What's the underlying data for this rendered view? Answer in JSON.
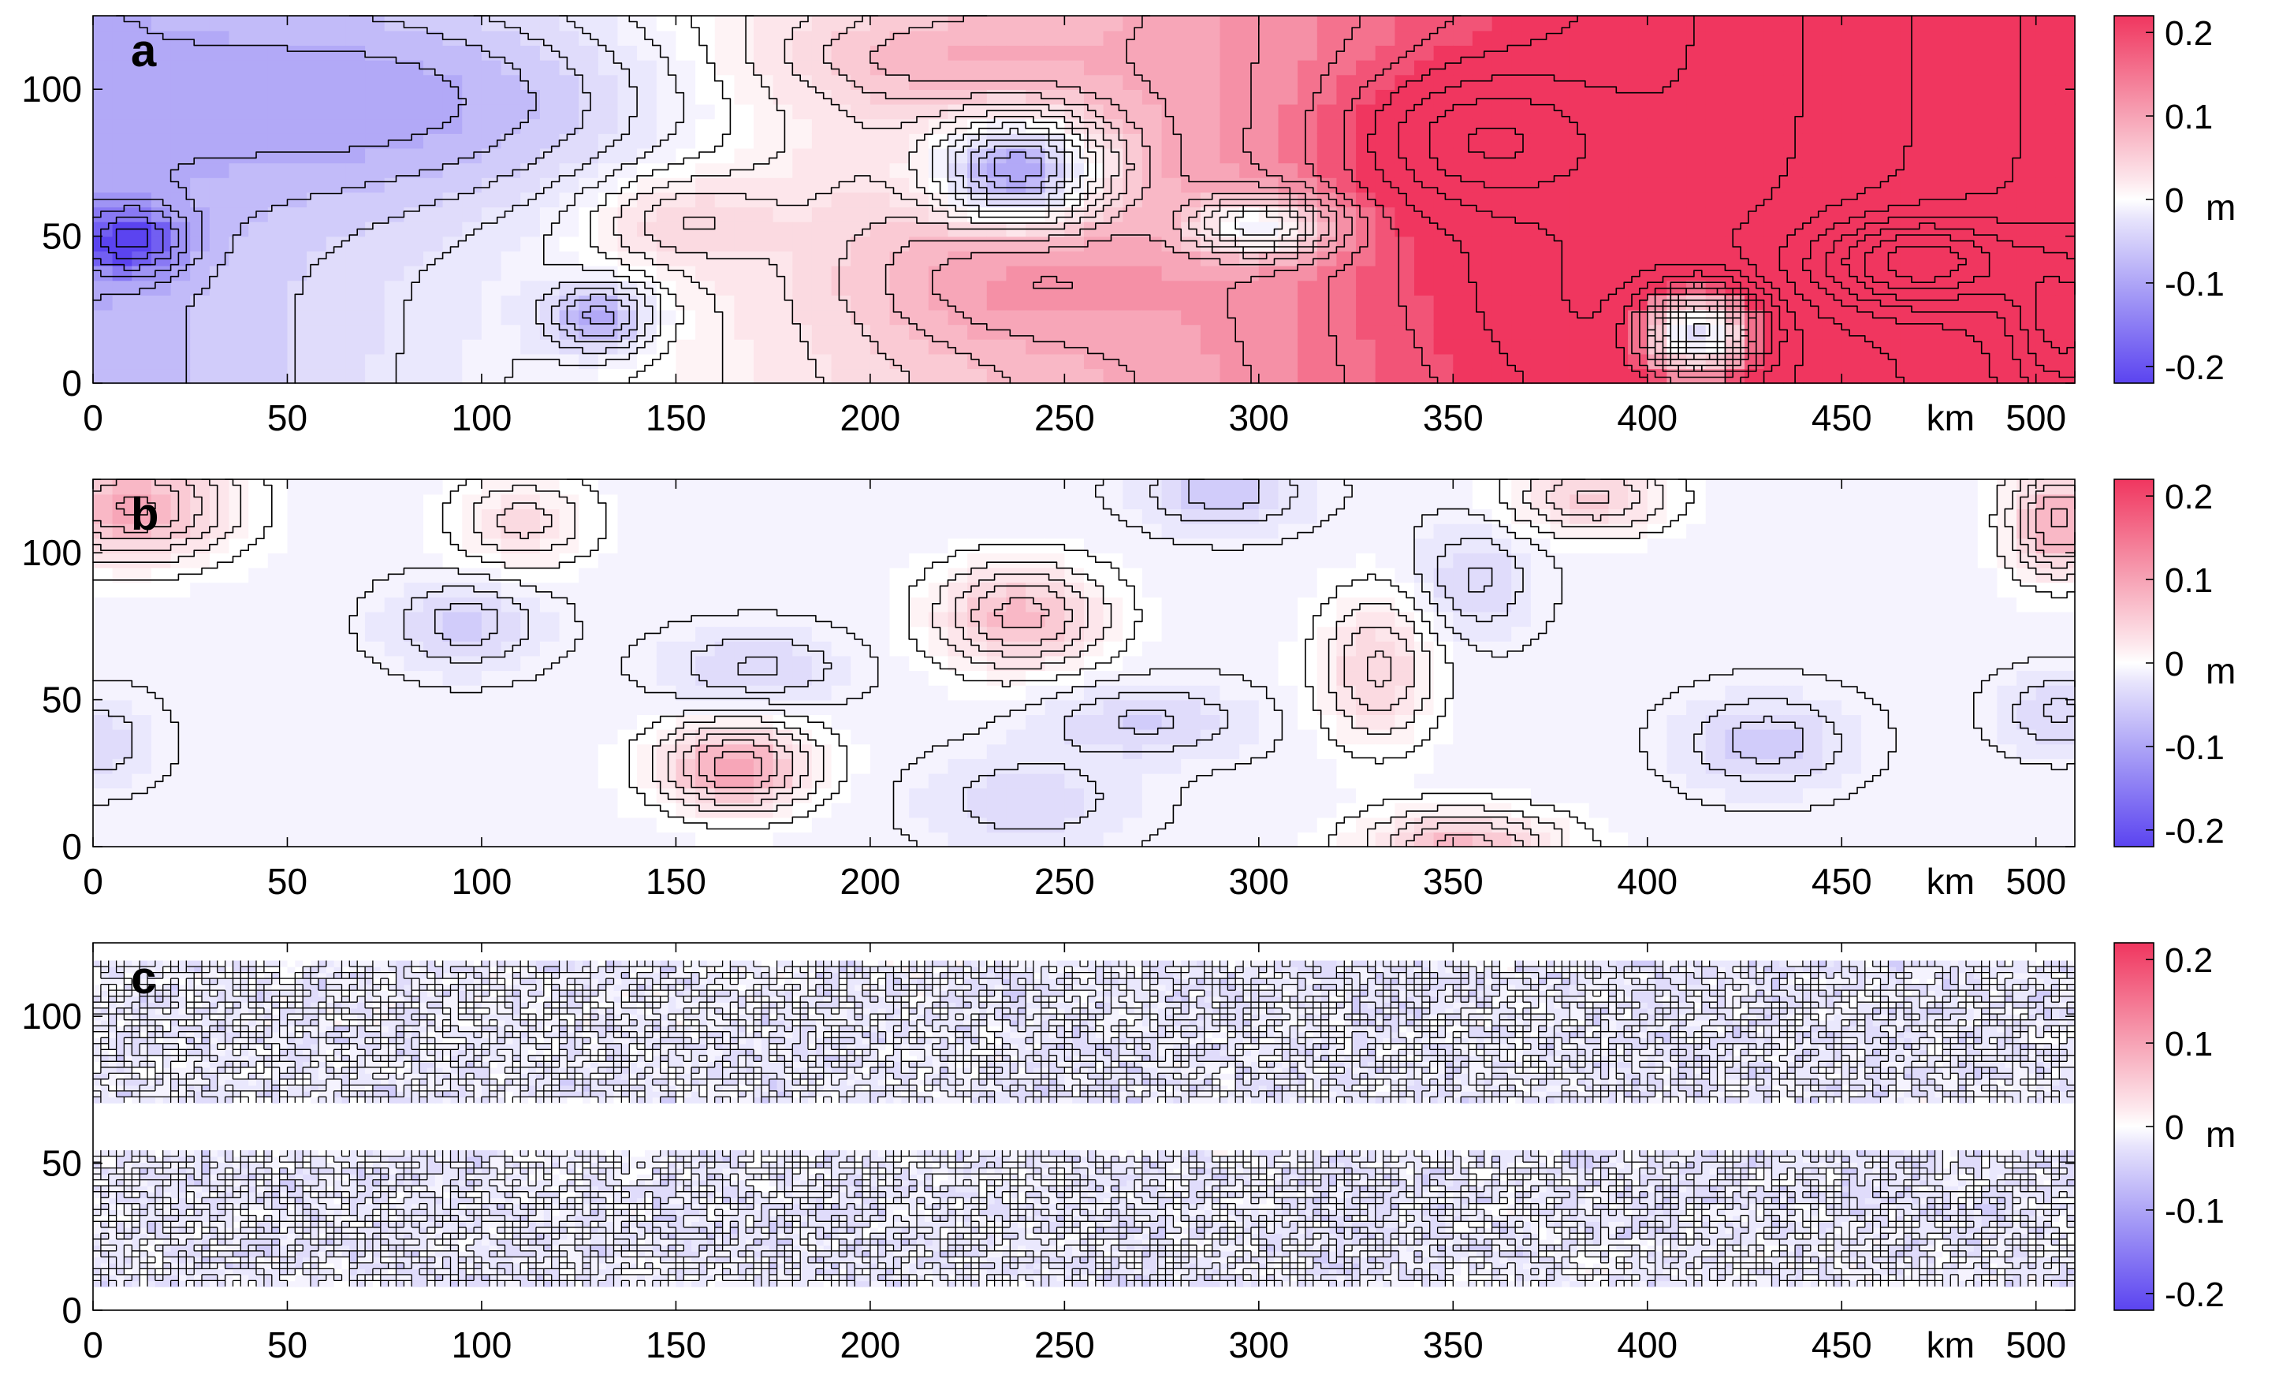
{
  "figure": {
    "description_units": "m",
    "distance_unit": "km"
  },
  "colors": {
    "negative_max": "#5b44f0",
    "negative_mid": "#a79df6",
    "negative_light": "#dcd8fb",
    "zero": "#ffffff",
    "positive_light": "#fbd6de",
    "positive_mid": "#f69aae",
    "positive_max": "#f0365f",
    "contour": "#000000"
  },
  "chart_data": [
    {
      "type": "heatmap",
      "panel_label": "a",
      "xlabel": "km",
      "xlim": [
        0,
        510
      ],
      "ylim": [
        0,
        125
      ],
      "xticks": [
        0,
        50,
        100,
        150,
        200,
        250,
        300,
        350,
        400,
        450,
        500
      ],
      "yticks": [
        0,
        50,
        100
      ],
      "clim": [
        -0.22,
        0.22
      ],
      "colorbar": {
        "ticks": [
          "0.2",
          "0.1",
          "0",
          "-0.1",
          "-0.2"
        ],
        "tick_values": [
          0.2,
          0.1,
          0,
          -0.1,
          -0.2
        ],
        "unit": "m"
      },
      "field": {
        "kind": "smooth",
        "trend": [
          -0.12,
          0.0,
          0.0009,
          0.0
        ],
        "features": [
          [
            90,
            95,
            70,
            35,
            -0.09
          ],
          [
            10,
            48,
            14,
            12,
            -0.12
          ],
          [
            130,
            22,
            14,
            12,
            -0.13
          ],
          [
            150,
            55,
            22,
            15,
            0.07
          ],
          [
            238,
            72,
            22,
            18,
            -0.24
          ],
          [
            300,
            53,
            18,
            10,
            -0.18
          ],
          [
            355,
            82,
            32,
            24,
            0.1
          ],
          [
            413,
            17,
            14,
            14,
            -0.33
          ],
          [
            468,
            40,
            25,
            15,
            0.14
          ],
          [
            505,
            20,
            12,
            22,
            0.08
          ],
          [
            380,
            30,
            60,
            35,
            0.03
          ],
          [
            230,
            35,
            40,
            25,
            0.06
          ],
          [
            210,
            110,
            40,
            15,
            0.05
          ]
        ]
      }
    },
    {
      "type": "heatmap",
      "panel_label": "b",
      "xlabel": "km",
      "xlim": [
        0,
        510
      ],
      "ylim": [
        0,
        125
      ],
      "xticks": [
        0,
        50,
        100,
        150,
        200,
        250,
        300,
        350,
        400,
        450,
        500
      ],
      "yticks": [
        0,
        50,
        100
      ],
      "clim": [
        -0.22,
        0.22
      ],
      "colorbar": {
        "ticks": [
          "0.2",
          "0.1",
          "0",
          "-0.1",
          "-0.2"
        ],
        "tick_values": [
          0.2,
          0.1,
          0,
          -0.1,
          -0.2
        ],
        "unit": "m"
      },
      "field": {
        "kind": "smooth",
        "trend": [
          -0.02,
          0.0,
          0.0,
          0.0
        ],
        "features": [
          [
            10,
            115,
            25,
            18,
            0.15
          ],
          [
            110,
            110,
            18,
            15,
            0.08
          ],
          [
            165,
            27,
            20,
            15,
            0.16
          ],
          [
            238,
            78,
            22,
            18,
            0.13
          ],
          [
            330,
            60,
            15,
            25,
            0.1
          ],
          [
            352,
            0,
            25,
            12,
            0.13
          ],
          [
            385,
            118,
            20,
            12,
            0.1
          ],
          [
            505,
            110,
            12,
            18,
            0.15
          ],
          [
            95,
            75,
            18,
            14,
            -0.07
          ],
          [
            170,
            60,
            22,
            12,
            -0.06
          ],
          [
            270,
            42,
            25,
            12,
            -0.06
          ],
          [
            290,
            120,
            20,
            12,
            -0.07
          ],
          [
            355,
            90,
            14,
            18,
            -0.06
          ],
          [
            430,
            35,
            20,
            15,
            -0.07
          ],
          [
            505,
            45,
            14,
            12,
            -0.06
          ],
          [
            0,
            35,
            14,
            14,
            -0.05
          ],
          [
            240,
            15,
            25,
            15,
            -0.05
          ]
        ]
      }
    },
    {
      "type": "heatmap",
      "panel_label": "c",
      "xlabel": "km",
      "xlim": [
        0,
        510
      ],
      "ylim": [
        0,
        125
      ],
      "xticks": [
        0,
        50,
        100,
        150,
        200,
        250,
        300,
        350,
        400,
        450,
        500
      ],
      "yticks": [
        0,
        50,
        100
      ],
      "clim": [
        -0.22,
        0.22
      ],
      "colorbar": {
        "ticks": [
          "0.2",
          "0.1",
          "0",
          "-0.1",
          "-0.2"
        ],
        "tick_values": [
          0.2,
          0.1,
          0,
          -0.1,
          -0.2
        ],
        "unit": "m"
      },
      "field": {
        "kind": "noisy",
        "bands_y": [
          [
            8,
            55
          ],
          [
            70,
            118
          ]
        ],
        "mean": -0.04,
        "noise_amplitude": 0.03
      }
    }
  ]
}
